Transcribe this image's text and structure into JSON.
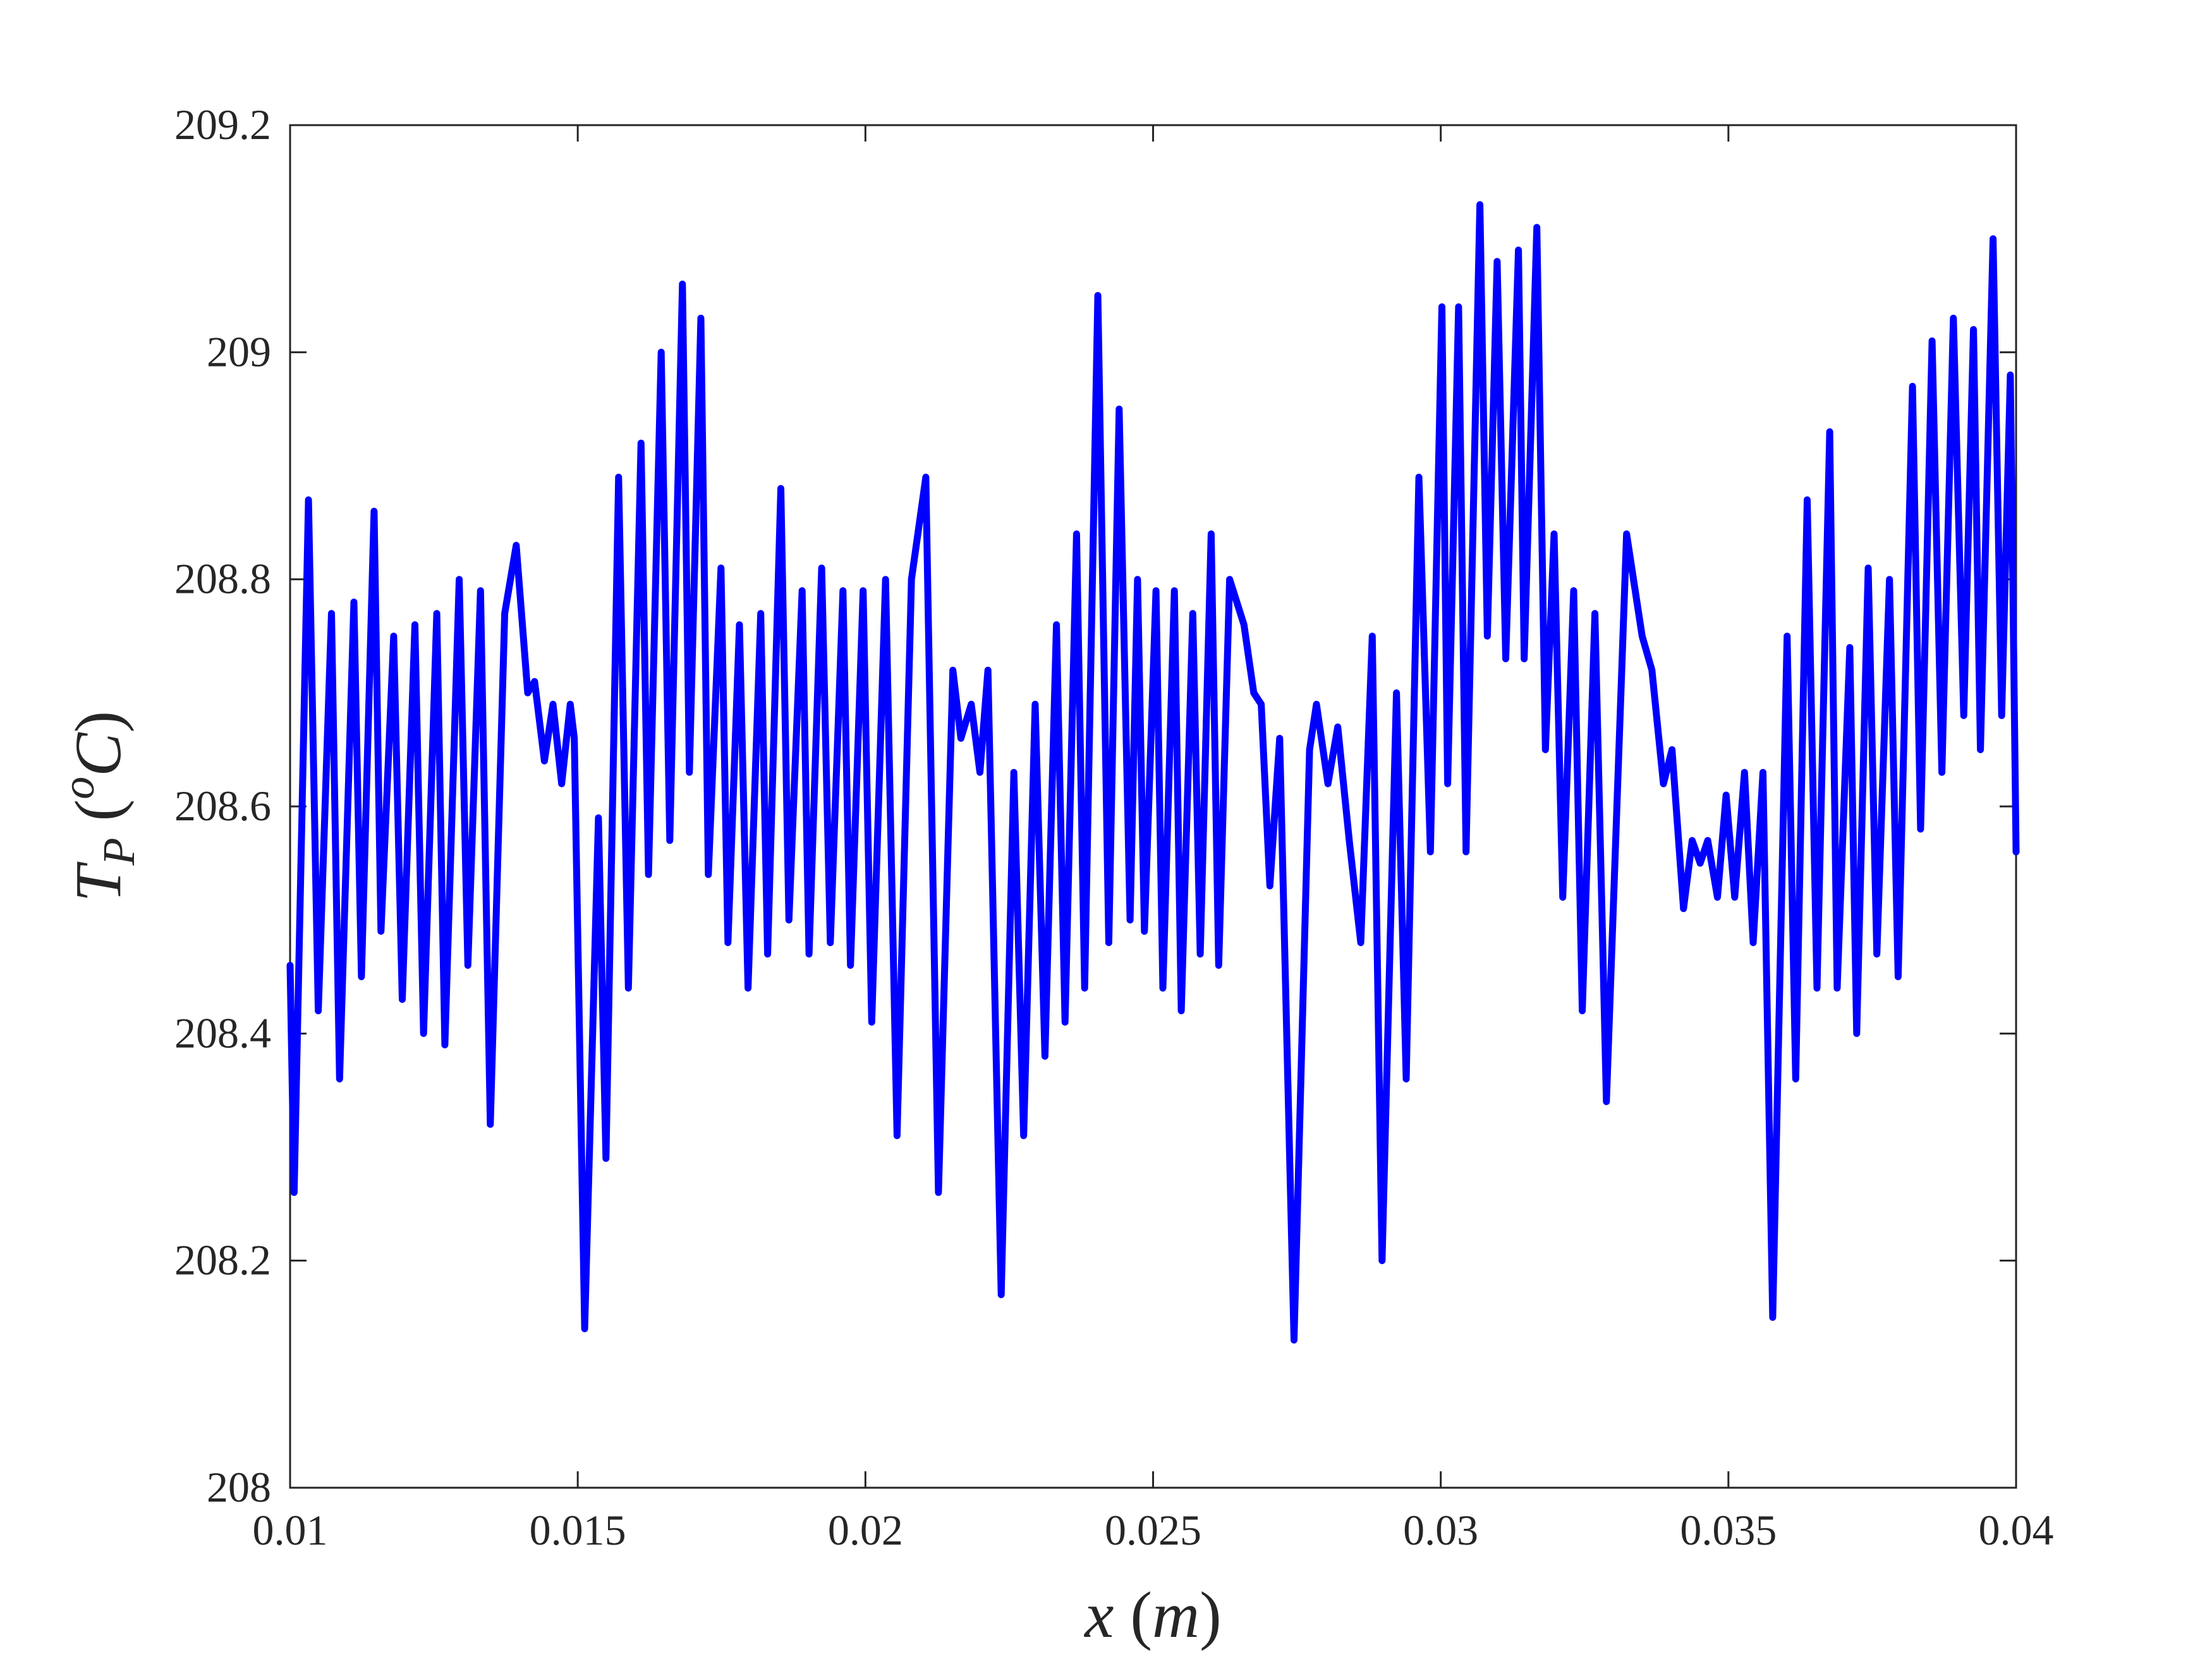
{
  "chart_data": {
    "type": "line",
    "xlabel": [
      "x",
      " (",
      "m",
      ")"
    ],
    "ylabel": [
      "T",
      "P",
      " (",
      "o",
      "C",
      ")"
    ],
    "xlim": [
      0.01,
      0.04
    ],
    "xticks": [
      0.01,
      0.015,
      0.02,
      0.025,
      0.03,
      0.035,
      0.04
    ],
    "ylim": [
      208,
      209.2
    ],
    "yticks": [
      208,
      208.2,
      208.4,
      208.6,
      208.8,
      209,
      209.2
    ],
    "grid": false,
    "series": [
      {
        "color": "#0000ff",
        "x": [
          0.01,
          0.01007,
          0.01032,
          0.01049,
          0.01072,
          0.01086,
          0.01111,
          0.01124,
          0.01146,
          0.01158,
          0.0118,
          0.01195,
          0.01217,
          0.01232,
          0.01255,
          0.01269,
          0.01294,
          0.01309,
          0.01331,
          0.01348,
          0.01373,
          0.01393,
          0.01413,
          0.01425,
          0.01442,
          0.01457,
          0.01472,
          0.01487,
          0.01494,
          0.01512,
          0.01536,
          0.01549,
          0.01571,
          0.01588,
          0.0161,
          0.01623,
          0.01645,
          0.0166,
          0.01682,
          0.01694,
          0.01714,
          0.01727,
          0.01749,
          0.01761,
          0.01781,
          0.01796,
          0.01818,
          0.0183,
          0.01853,
          0.01867,
          0.0189,
          0.01902,
          0.01924,
          0.01939,
          0.01961,
          0.01974,
          0.01996,
          0.02011,
          0.02035,
          0.02055,
          0.0208,
          0.02105,
          0.02127,
          0.02152,
          0.02166,
          0.02184,
          0.02199,
          0.02213,
          0.02236,
          0.02258,
          0.02275,
          0.02295,
          0.02312,
          0.02332,
          0.02347,
          0.02367,
          0.02381,
          0.02404,
          0.02423,
          0.02441,
          0.0246,
          0.02473,
          0.02485,
          0.02505,
          0.02517,
          0.02537,
          0.02549,
          0.02569,
          0.02582,
          0.02601,
          0.02614,
          0.02633,
          0.02658,
          0.02675,
          0.02688,
          0.02703,
          0.0272,
          0.02745,
          0.02772,
          0.02784,
          0.02804,
          0.02821,
          0.02841,
          0.02861,
          0.02881,
          0.02898,
          0.02923,
          0.0294,
          0.02962,
          0.02982,
          0.03002,
          0.03012,
          0.03031,
          0.03044,
          0.03068,
          0.03081,
          0.03098,
          0.03113,
          0.03135,
          0.03145,
          0.03167,
          0.03182,
          0.03197,
          0.03212,
          0.03231,
          0.03246,
          0.03268,
          0.03288,
          0.03323,
          0.0335,
          0.03367,
          0.03387,
          0.03402,
          0.03422,
          0.03437,
          0.03451,
          0.03464,
          0.03481,
          0.03496,
          0.03511,
          0.03528,
          0.03543,
          0.0356,
          0.03577,
          0.03602,
          0.03617,
          0.03637,
          0.03654,
          0.03676,
          0.03689,
          0.03711,
          0.03723,
          0.03743,
          0.03758,
          0.0378,
          0.03795,
          0.0382,
          0.03834,
          0.03854,
          0.03871,
          0.03891,
          0.03909,
          0.03926,
          0.03938,
          0.0396,
          0.03975,
          0.0399,
          0.04
        ],
        "values": [
          208.46,
          208.26,
          208.87,
          208.42,
          208.77,
          208.36,
          208.78,
          208.45,
          208.86,
          208.49,
          208.75,
          208.43,
          208.76,
          208.4,
          208.77,
          208.39,
          208.8,
          208.46,
          208.79,
          208.32,
          208.77,
          208.83,
          208.7,
          208.71,
          208.64,
          208.69,
          208.62,
          208.69,
          208.66,
          208.14,
          208.59,
          208.29,
          208.89,
          208.44,
          208.92,
          208.54,
          209.0,
          208.57,
          209.06,
          208.63,
          209.03,
          208.54,
          208.81,
          208.48,
          208.76,
          208.44,
          208.77,
          208.47,
          208.88,
          208.5,
          208.79,
          208.47,
          208.81,
          208.48,
          208.79,
          208.46,
          208.79,
          208.41,
          208.8,
          208.31,
          208.8,
          208.89,
          208.26,
          208.72,
          208.66,
          208.69,
          208.63,
          208.72,
          208.17,
          208.63,
          208.31,
          208.69,
          208.38,
          208.76,
          208.41,
          208.84,
          208.44,
          209.05,
          208.48,
          208.95,
          208.5,
          208.8,
          208.49,
          208.79,
          208.44,
          208.79,
          208.42,
          208.77,
          208.47,
          208.84,
          208.46,
          208.8,
          208.76,
          208.7,
          208.69,
          208.53,
          208.66,
          208.13,
          208.65,
          208.69,
          208.62,
          208.67,
          208.57,
          208.48,
          208.75,
          208.2,
          208.7,
          208.36,
          208.89,
          208.56,
          209.04,
          208.62,
          209.04,
          208.56,
          209.13,
          208.75,
          209.08,
          208.73,
          209.09,
          208.73,
          209.11,
          208.65,
          208.84,
          208.52,
          208.79,
          208.42,
          208.77,
          208.34,
          208.84,
          208.75,
          208.72,
          208.62,
          208.65,
          208.51,
          208.57,
          208.55,
          208.57,
          208.52,
          208.61,
          208.52,
          208.63,
          208.48,
          208.63,
          208.15,
          208.75,
          208.36,
          208.87,
          208.44,
          208.93,
          208.44,
          208.74,
          208.4,
          208.81,
          208.47,
          208.8,
          208.45,
          208.97,
          208.58,
          209.01,
          208.63,
          209.03,
          208.68,
          209.02,
          208.65,
          209.1,
          208.68,
          208.98,
          208.56
        ]
      }
    ]
  }
}
